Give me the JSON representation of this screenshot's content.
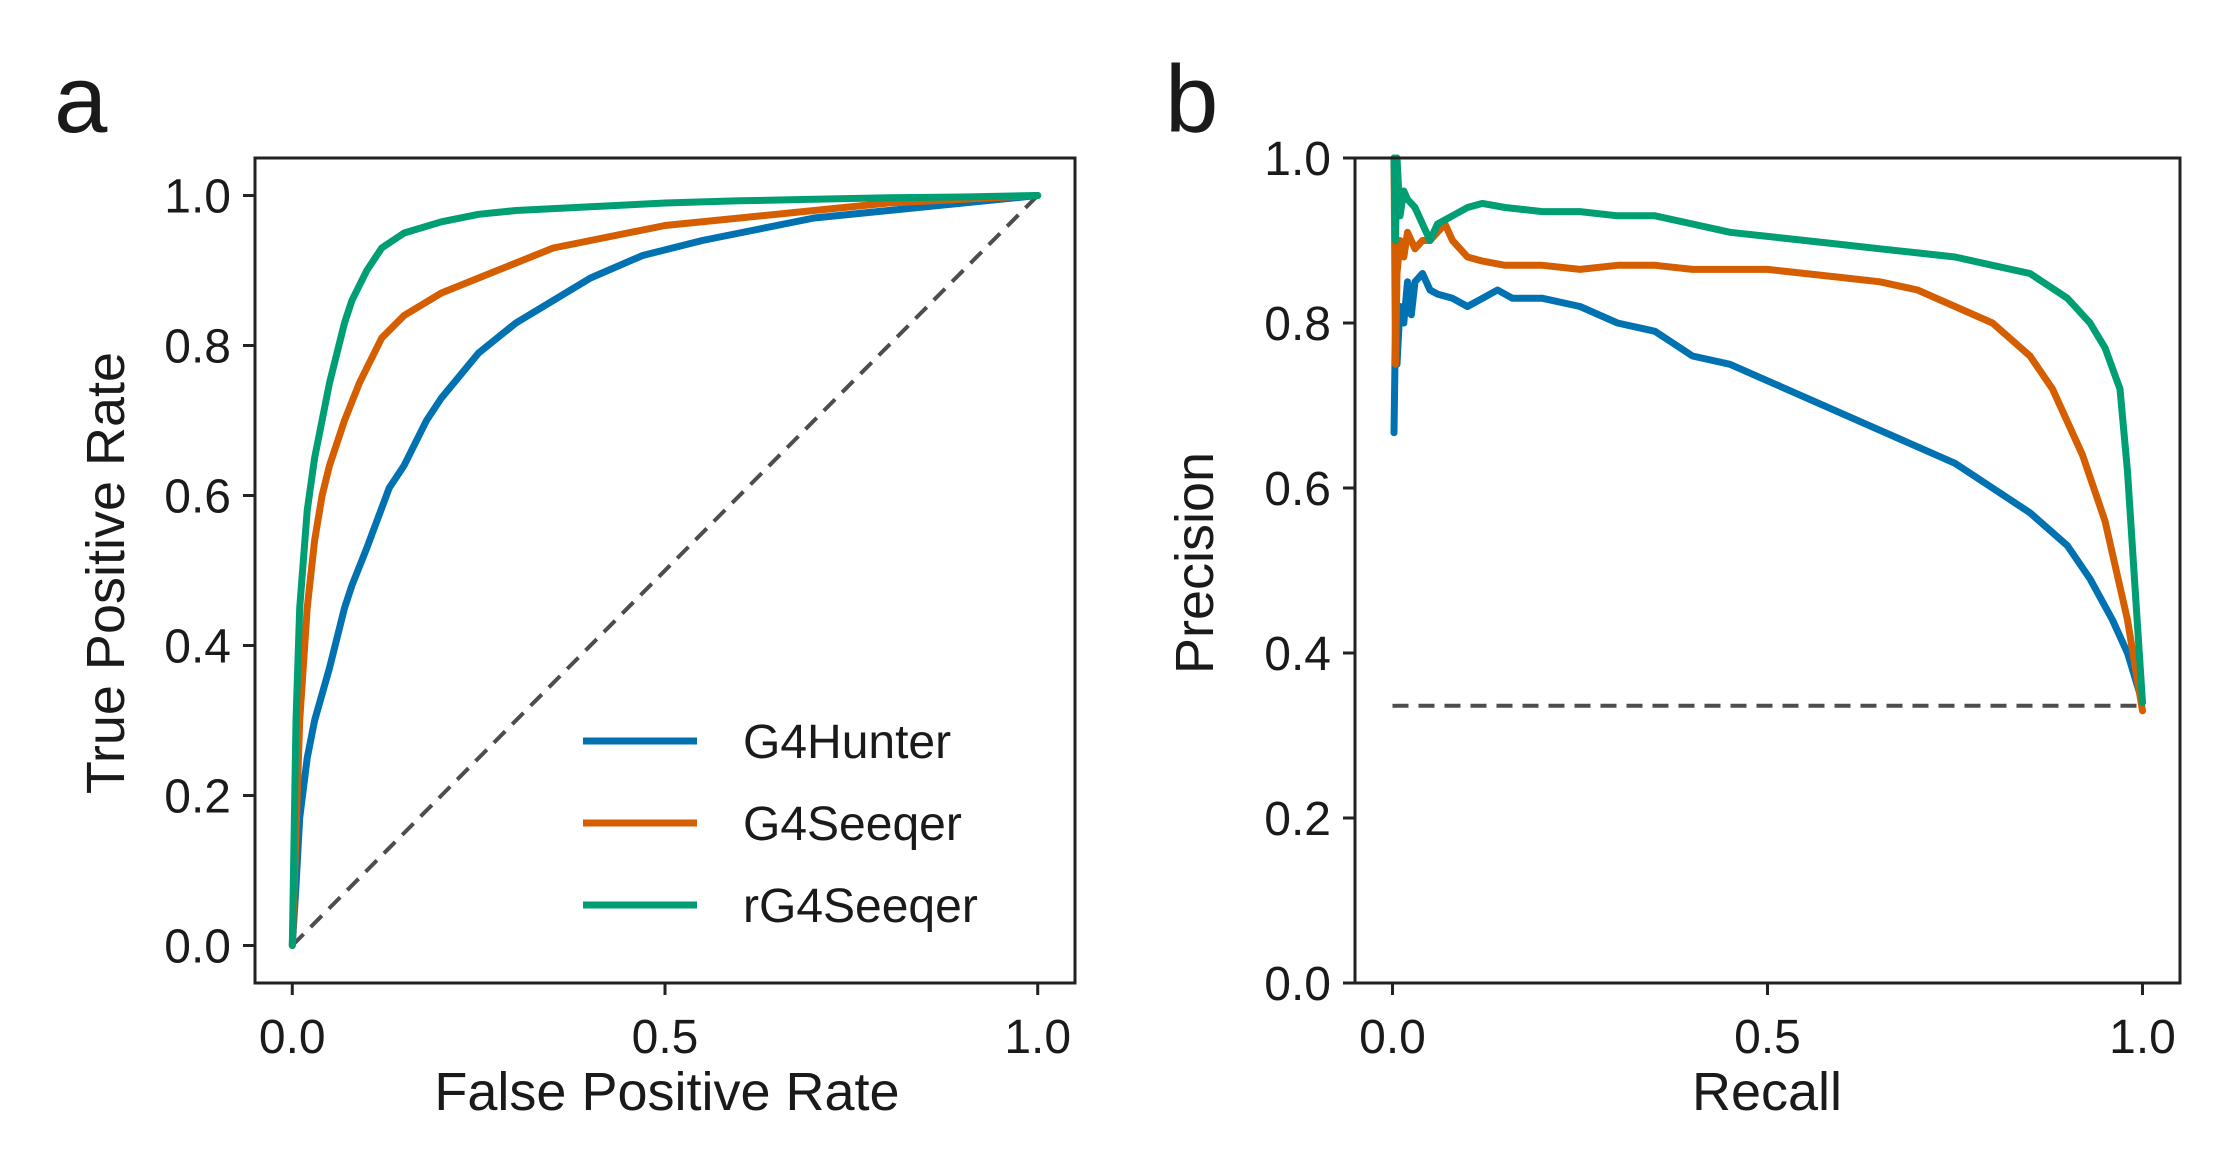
{
  "colors": {
    "G4Hunter": "#0072b2",
    "G4Seeqer": "#d55e00",
    "rG4Seeqer": "#009e73",
    "baseline": "#4d4d4d",
    "axes": "#222222"
  },
  "chart_data": [
    {
      "panel": "a",
      "type": "line",
      "xlabel": "False Positive Rate",
      "ylabel": "True Positive Rate",
      "xlim": [
        -0.05,
        1.05
      ],
      "ylim": [
        -0.05,
        1.05
      ],
      "xticks": [
        "0.0",
        "0.5",
        "1.0"
      ],
      "yticks": [
        "0.0",
        "0.2",
        "0.4",
        "0.6",
        "0.8",
        "1.0"
      ],
      "grid": false,
      "legend": "bottom-right",
      "baseline": {
        "style": "dashed",
        "x": [
          0,
          1
        ],
        "y": [
          0,
          1
        ]
      },
      "series": [
        {
          "name": "G4Hunter",
          "color_key": "G4Hunter",
          "x": [
            0,
            0.005,
            0.01,
            0.02,
            0.03,
            0.05,
            0.07,
            0.08,
            0.1,
            0.13,
            0.15,
            0.18,
            0.2,
            0.25,
            0.3,
            0.35,
            0.4,
            0.47,
            0.55,
            0.6,
            0.7,
            0.8,
            0.9,
            1.0
          ],
          "y": [
            0,
            0.08,
            0.17,
            0.25,
            0.3,
            0.37,
            0.45,
            0.48,
            0.53,
            0.61,
            0.64,
            0.7,
            0.73,
            0.79,
            0.83,
            0.86,
            0.89,
            0.92,
            0.94,
            0.95,
            0.97,
            0.98,
            0.99,
            1.0
          ]
        },
        {
          "name": "G4Seeqer",
          "color_key": "G4Seeqer",
          "x": [
            0,
            0.005,
            0.01,
            0.02,
            0.03,
            0.04,
            0.05,
            0.07,
            0.09,
            0.1,
            0.12,
            0.15,
            0.2,
            0.25,
            0.3,
            0.35,
            0.4,
            0.5,
            0.6,
            0.7,
            0.8,
            0.9,
            1.0
          ],
          "y": [
            0,
            0.15,
            0.3,
            0.45,
            0.54,
            0.6,
            0.64,
            0.7,
            0.75,
            0.77,
            0.81,
            0.84,
            0.87,
            0.89,
            0.91,
            0.93,
            0.94,
            0.96,
            0.97,
            0.98,
            0.99,
            0.995,
            1.0
          ]
        },
        {
          "name": "rG4Seeqer",
          "color_key": "rG4Seeqer",
          "x": [
            0,
            0.005,
            0.01,
            0.02,
            0.03,
            0.05,
            0.07,
            0.08,
            0.1,
            0.12,
            0.15,
            0.2,
            0.25,
            0.3,
            0.4,
            0.5,
            0.6,
            0.7,
            0.8,
            0.9,
            1.0
          ],
          "y": [
            0,
            0.3,
            0.45,
            0.58,
            0.65,
            0.75,
            0.83,
            0.86,
            0.9,
            0.93,
            0.95,
            0.965,
            0.975,
            0.98,
            0.985,
            0.99,
            0.993,
            0.995,
            0.997,
            0.998,
            1.0
          ]
        }
      ]
    },
    {
      "panel": "b",
      "type": "line",
      "xlabel": "Recall",
      "ylabel": "Precision",
      "xlim": [
        -0.05,
        1.05
      ],
      "ylim": [
        0.0,
        1.0
      ],
      "xticks": [
        "0.0",
        "0.5",
        "1.0"
      ],
      "yticks": [
        "0.0",
        "0.2",
        "0.4",
        "0.6",
        "0.8",
        "1.0"
      ],
      "grid": false,
      "baseline": {
        "style": "dashed",
        "x": [
          0,
          1
        ],
        "y": [
          0.336,
          0.336
        ]
      },
      "series": [
        {
          "name": "G4Hunter",
          "color_key": "G4Hunter",
          "x": [
            0.002,
            0.004,
            0.006,
            0.01,
            0.015,
            0.02,
            0.025,
            0.03,
            0.04,
            0.05,
            0.06,
            0.08,
            0.1,
            0.12,
            0.14,
            0.16,
            0.2,
            0.25,
            0.3,
            0.35,
            0.4,
            0.45,
            0.5,
            0.55,
            0.6,
            0.65,
            0.7,
            0.75,
            0.8,
            0.85,
            0.9,
            0.93,
            0.96,
            0.98,
            1.0
          ],
          "y": [
            0.667,
            0.8,
            0.75,
            0.82,
            0.8,
            0.85,
            0.81,
            0.85,
            0.86,
            0.84,
            0.835,
            0.83,
            0.82,
            0.83,
            0.84,
            0.83,
            0.83,
            0.82,
            0.8,
            0.79,
            0.76,
            0.75,
            0.73,
            0.71,
            0.69,
            0.67,
            0.65,
            0.63,
            0.6,
            0.57,
            0.53,
            0.49,
            0.44,
            0.4,
            0.34
          ]
        },
        {
          "name": "G4Seeqer",
          "color_key": "G4Seeqer",
          "x": [
            0.002,
            0.004,
            0.006,
            0.01,
            0.015,
            0.02,
            0.03,
            0.04,
            0.05,
            0.06,
            0.07,
            0.08,
            0.1,
            0.12,
            0.15,
            0.2,
            0.25,
            0.3,
            0.35,
            0.4,
            0.45,
            0.5,
            0.55,
            0.6,
            0.65,
            0.7,
            0.75,
            0.8,
            0.85,
            0.88,
            0.92,
            0.95,
            0.98,
            1.0
          ],
          "y": [
            1.0,
            0.75,
            0.86,
            0.9,
            0.88,
            0.91,
            0.89,
            0.9,
            0.9,
            0.91,
            0.92,
            0.9,
            0.88,
            0.875,
            0.87,
            0.87,
            0.865,
            0.87,
            0.87,
            0.865,
            0.865,
            0.865,
            0.86,
            0.855,
            0.85,
            0.84,
            0.82,
            0.8,
            0.76,
            0.72,
            0.64,
            0.56,
            0.44,
            0.33
          ]
        },
        {
          "name": "rG4Seeqer",
          "color_key": "rG4Seeqer",
          "x": [
            0.002,
            0.004,
            0.006,
            0.01,
            0.015,
            0.02,
            0.03,
            0.04,
            0.05,
            0.06,
            0.08,
            0.1,
            0.12,
            0.15,
            0.2,
            0.25,
            0.3,
            0.35,
            0.4,
            0.45,
            0.5,
            0.55,
            0.6,
            0.65,
            0.7,
            0.75,
            0.8,
            0.85,
            0.9,
            0.93,
            0.95,
            0.97,
            0.98,
            0.99,
            1.0
          ],
          "y": [
            1.0,
            0.9,
            1.0,
            0.93,
            0.96,
            0.95,
            0.94,
            0.92,
            0.9,
            0.92,
            0.93,
            0.94,
            0.945,
            0.94,
            0.935,
            0.935,
            0.93,
            0.93,
            0.92,
            0.91,
            0.905,
            0.9,
            0.895,
            0.89,
            0.885,
            0.88,
            0.87,
            0.86,
            0.83,
            0.8,
            0.77,
            0.72,
            0.62,
            0.48,
            0.34
          ]
        }
      ]
    }
  ]
}
